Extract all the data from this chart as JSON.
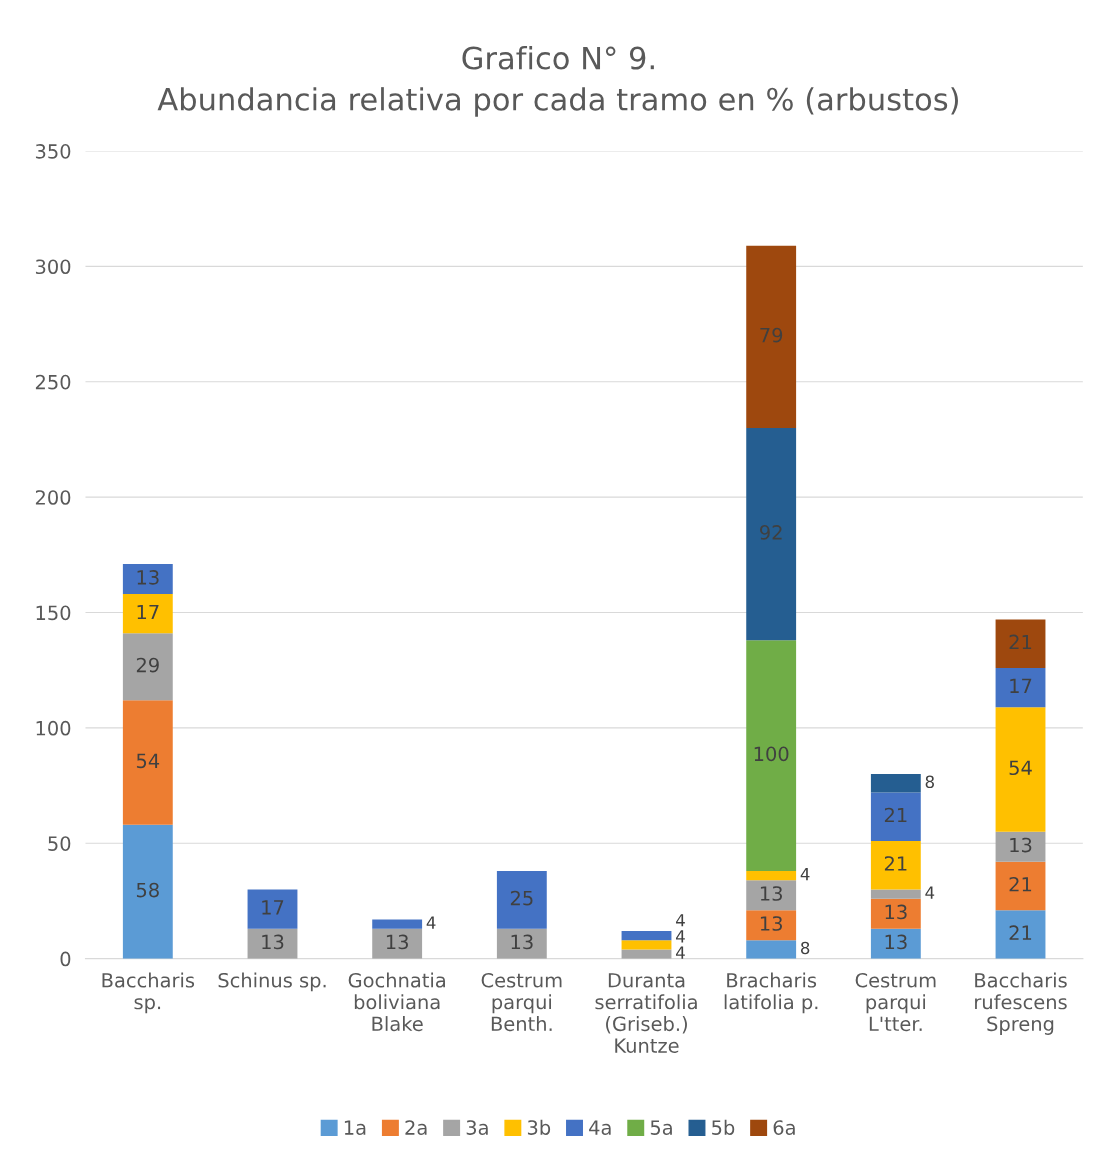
{
  "chart_data": {
    "type": "bar",
    "stacked": true,
    "title": "Grafico N° 9.\nAbundancia relativa por cada tramo en % (arbustos)",
    "categories": [
      "Baccharis\nsp.",
      "Schinus sp.",
      "Gochnatia\nboliviana\nBlake",
      "Cestrum\nparqui\nBenth.",
      "Duranta\nserratifolia\n(Griseb.)\nKuntze",
      "Bracharis\nlatifolia p.",
      "Cestrum\nparqui\nL'tter.",
      "Baccharis\nrufescens\nSpreng"
    ],
    "series": [
      {
        "name": "1a",
        "color": "#5b9bd5",
        "values": [
          58,
          null,
          null,
          null,
          null,
          8,
          13,
          21
        ]
      },
      {
        "name": "2a",
        "color": "#ed7d31",
        "values": [
          54,
          null,
          null,
          null,
          null,
          13,
          13,
          21
        ]
      },
      {
        "name": "3a",
        "color": "#a5a5a5",
        "values": [
          29,
          13,
          13,
          13,
          4,
          13,
          4,
          13
        ]
      },
      {
        "name": "3b",
        "color": "#ffc000",
        "values": [
          17,
          null,
          null,
          null,
          4,
          4,
          21,
          54
        ]
      },
      {
        "name": "4a",
        "color": "#4472c4",
        "values": [
          13,
          17,
          4,
          25,
          4,
          null,
          21,
          17
        ]
      },
      {
        "name": "5a",
        "color": "#70ad47",
        "values": [
          null,
          null,
          null,
          null,
          null,
          100,
          null,
          null
        ]
      },
      {
        "name": "5b",
        "color": "#255e91",
        "values": [
          null,
          null,
          null,
          null,
          null,
          92,
          8,
          null
        ]
      },
      {
        "name": "6a",
        "color": "#9e480e",
        "values": [
          null,
          null,
          null,
          null,
          null,
          79,
          null,
          21
        ]
      }
    ],
    "ylim": [
      0,
      350
    ],
    "yticks": [
      0,
      50,
      100,
      150,
      200,
      250,
      300,
      350
    ],
    "grid": "y",
    "legend": "bottom",
    "data_labels": true
  }
}
